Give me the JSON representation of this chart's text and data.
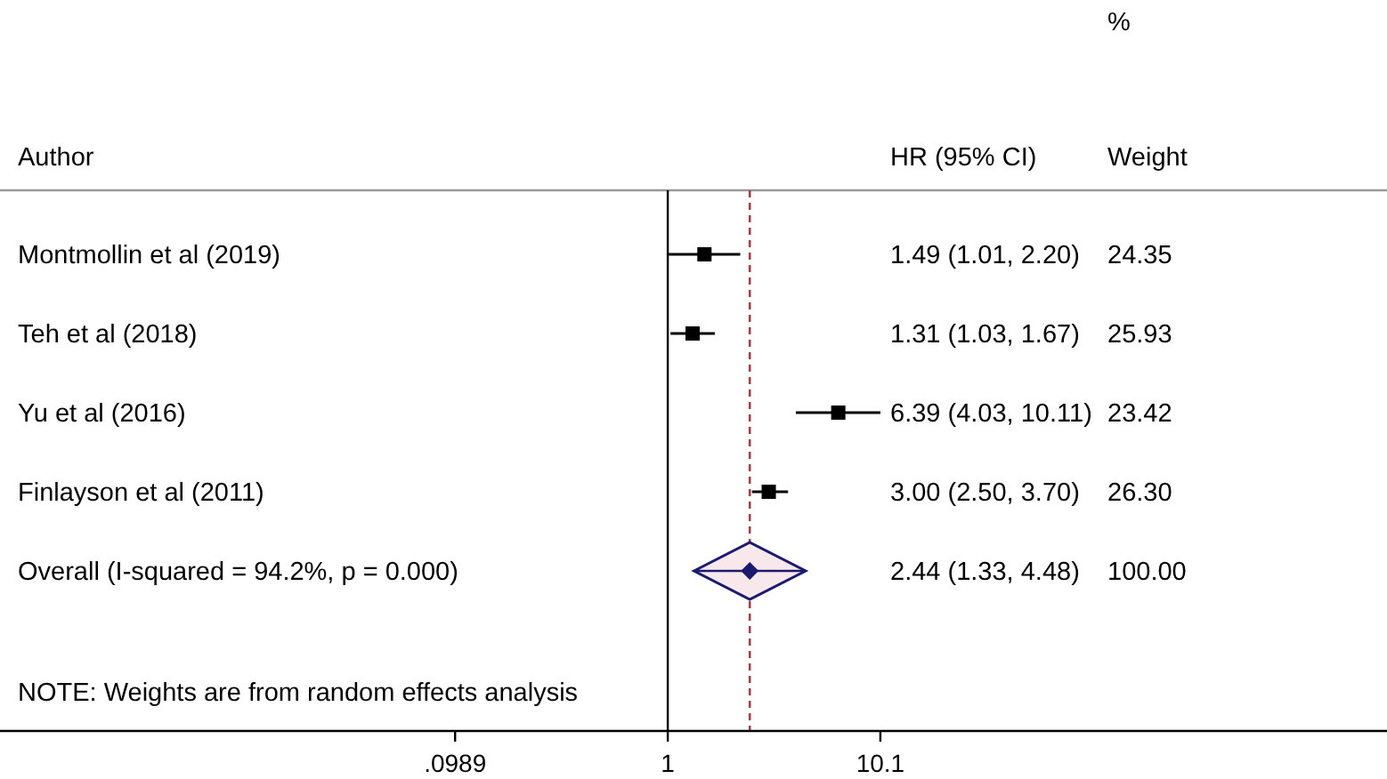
{
  "chart_data": {
    "type": "scatter",
    "orientation": "horizontal",
    "ylabel": "Author",
    "categories": [
      "Montmollin et al (2019)",
      "Teh et al (2018)",
      "Yu et al (2016)",
      "Finlayson et al (2011)",
      "Overall  (I-squared = 94.2%, p = 0.000)"
    ],
    "series": [
      {
        "type": "scatter",
        "marker": "square",
        "color": "#000000",
        "values": [
          1.49,
          1.31,
          6.39,
          3.0,
          null
        ],
        "errors": [
          [
            1.01,
            2.2
          ],
          [
            1.03,
            1.67
          ],
          [
            4.03,
            10.11
          ],
          [
            2.5,
            3.7
          ],
          null
        ]
      },
      {
        "type": "scatter",
        "marker": "diamond",
        "color": "#1a1a6e",
        "values": [
          null,
          null,
          null,
          null,
          2.44
        ],
        "errors": [
          null,
          null,
          null,
          null,
          [
            1.33,
            4.48
          ]
        ]
      }
    ],
    "log": "x",
    "xlim": [
      0.0007,
      2500
    ],
    "xticks": [
      {
        "value": 0.0989,
        "label": ".0989"
      },
      1,
      10.1
    ],
    "ref_lines": [
      {
        "axis": "x",
        "value": 1,
        "color": "#000000",
        "line_style": "solid"
      },
      {
        "axis": "x",
        "value": 2.44,
        "color": "#a0404a",
        "line_style": "dashed"
      }
    ],
    "annotations": [
      "HR (95% CI)",
      "% Weight",
      "1.49 (1.01, 2.20)",
      "1.31 (1.03, 1.67)",
      "6.39 (4.03, 10.11)",
      "3.00 (2.50, 3.70)",
      "2.44 (1.33, 4.48)",
      "24.35",
      "25.93",
      "23.42",
      "26.30",
      "100.00",
      "NOTE: Weights are from random effects analysis"
    ]
  }
}
